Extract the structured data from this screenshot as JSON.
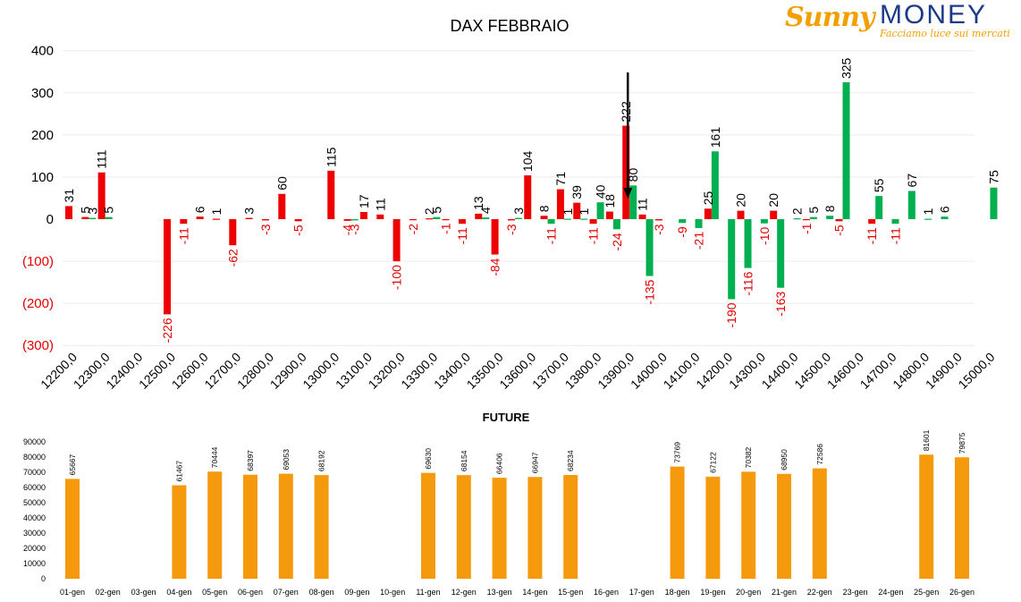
{
  "logo": {
    "brand_first": "Sunny",
    "brand_second": "MONEY",
    "tagline": "Facciamo luce sui mercati"
  },
  "colors": {
    "negative_bar": "#ee0000",
    "positive_bar": "#00b050",
    "future_bar": "#f59a0c",
    "negative_label": "#e00000"
  },
  "chart_data": [
    {
      "type": "bar",
      "title": "DAX FEBBRAIO",
      "ylim": [
        -300,
        400
      ],
      "yticks": [
        400,
        300,
        200,
        100,
        0,
        -100,
        -200,
        -300
      ],
      "ytick_labels": [
        "400",
        "300",
        "200",
        "100",
        "0",
        "(100)",
        "(200)",
        "(300)"
      ],
      "categories": [
        "12200,0",
        "12250,0",
        "12300,0",
        "12350,0",
        "12400,0",
        "12450,0",
        "12500,0",
        "12550,0",
        "12600,0",
        "12650,0",
        "12700,0",
        "12750,0",
        "12800,0",
        "12850,0",
        "12900,0",
        "12950,0",
        "13000,0",
        "13050,0",
        "13100,0",
        "13150,0",
        "13200,0",
        "13250,0",
        "13300,0",
        "13350,0",
        "13400,0",
        "13450,0",
        "13500,0",
        "13550,0",
        "13600,0",
        "13650,0",
        "13700,0",
        "13750,0",
        "13800,0",
        "13850,0",
        "13900,0",
        "13950,0",
        "14000,0",
        "14050,0",
        "14100,0",
        "14150,0",
        "14200,0",
        "14250,0",
        "14300,0",
        "14350,0",
        "14400,0",
        "14450,0",
        "14500,0",
        "14550,0",
        "14600,0",
        "14650,0",
        "14700,0",
        "14750,0",
        "14800,0",
        "14850,0",
        "14900,0",
        "14950,0",
        "15000,0"
      ],
      "xtick_labels": [
        "12200,0",
        "12300,0",
        "12400,0",
        "12500,0",
        "12600,0",
        "12700,0",
        "12800,0",
        "12900,0",
        "13000,0",
        "13100,0",
        "13200,0",
        "13300,0",
        "13400,0",
        "13500,0",
        "13600,0",
        "13700,0",
        "13800,0",
        "13900,0",
        "14000,0",
        "14100,0",
        "14200,0",
        "14300,0",
        "14400,0",
        "14500,0",
        "14600,0",
        "14700,0",
        "14800,0",
        "14900,0",
        "15000,0"
      ],
      "series": [
        {
          "color": "negative_bar",
          "values": [
            31,
            5,
            111,
            null,
            null,
            null,
            -226,
            -11,
            6,
            1,
            -62,
            3,
            -3,
            60,
            -5,
            null,
            115,
            -4,
            17,
            11,
            -100,
            -2,
            2,
            -1,
            -11,
            13,
            -84,
            -3,
            104,
            8,
            71,
            39,
            -11,
            18,
            222,
            11,
            -3,
            null,
            null,
            25,
            null,
            20,
            null,
            20,
            null,
            -1,
            null,
            -5,
            null,
            -11,
            null,
            null,
            null,
            null,
            null,
            null,
            null
          ]
        },
        {
          "color": "positive_bar",
          "values": [
            null,
            3,
            5,
            null,
            null,
            null,
            null,
            null,
            null,
            null,
            null,
            null,
            null,
            null,
            null,
            null,
            null,
            -3,
            null,
            null,
            null,
            null,
            5,
            null,
            null,
            4,
            null,
            3,
            null,
            -11,
            1,
            1,
            40,
            -24,
            80,
            -135,
            null,
            -9,
            -21,
            161,
            -190,
            -116,
            -10,
            -163,
            2,
            5,
            8,
            325,
            null,
            55,
            -11,
            67,
            1,
            6,
            null,
            null,
            75
          ]
        }
      ],
      "arrow_at": "13900,0"
    },
    {
      "type": "bar",
      "title": "FUTURE",
      "ylim": [
        0,
        90000
      ],
      "yticks": [
        90000,
        80000,
        70000,
        60000,
        50000,
        40000,
        30000,
        20000,
        10000,
        0
      ],
      "categories": [
        "01-gen",
        "02-gen",
        "03-gen",
        "04-gen",
        "05-gen",
        "06-gen",
        "07-gen",
        "08-gen",
        "09-gen",
        "10-gen",
        "11-gen",
        "12-gen",
        "13-gen",
        "14-gen",
        "15-gen",
        "16-gen",
        "17-gen",
        "18-gen",
        "19-gen",
        "20-gen",
        "21-gen",
        "22-gen",
        "23-gen",
        "24-gen",
        "25-gen",
        "26-gen"
      ],
      "values": [
        65667,
        null,
        null,
        61467,
        70444,
        68397,
        69053,
        68192,
        null,
        null,
        69630,
        68154,
        66406,
        66947,
        68234,
        null,
        null,
        73769,
        67122,
        70382,
        68950,
        72586,
        null,
        null,
        81601,
        79875
      ],
      "color": "future_bar"
    }
  ]
}
